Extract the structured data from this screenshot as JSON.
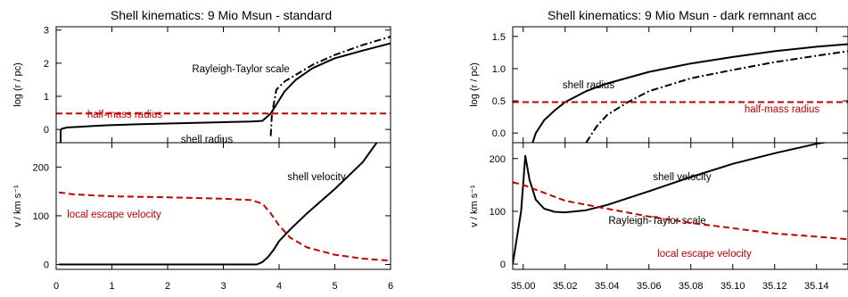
{
  "chart_data": [
    {
      "type": "line",
      "title": "Shell kinematics: 9 Mio Msun - standard",
      "xlim": [
        0,
        6
      ],
      "x_ticks": [
        "0",
        "1",
        "2",
        "3",
        "4",
        "5",
        "6"
      ],
      "panels": [
        {
          "ylabel": "log (r / pc)",
          "ylim": [
            -0.4,
            3.1
          ],
          "y_ticks": [
            "0",
            "1",
            "2",
            "3"
          ],
          "series": [
            {
              "name": "shell radius",
              "color": "#000000",
              "style": "solid",
              "x": [
                0.08,
                0.08,
                0.1,
                0.2,
                0.4,
                0.7,
                1.0,
                1.5,
                2.0,
                2.5,
                3.0,
                3.5,
                3.7,
                3.85,
                3.95,
                4.1,
                4.3,
                4.6,
                5.0,
                5.5,
                6.0
              ],
              "y": [
                -0.4,
                -0.02,
                0.02,
                0.06,
                0.08,
                0.11,
                0.13,
                0.16,
                0.18,
                0.2,
                0.22,
                0.24,
                0.26,
                0.48,
                0.75,
                1.15,
                1.5,
                1.85,
                2.15,
                2.38,
                2.6
              ]
            },
            {
              "name": "Rayleigh-Taylor scale",
              "color": "#000000",
              "style": "dashdot",
              "x": [
                3.85,
                3.87,
                3.95,
                4.1,
                4.3,
                4.6,
                5.0,
                5.5,
                6.0
              ],
              "y": [
                -0.2,
                0.45,
                1.2,
                1.45,
                1.65,
                1.95,
                2.25,
                2.55,
                2.8
              ]
            },
            {
              "name": "half-mass radius",
              "color": "#c00000",
              "style": "dashed",
              "x": [
                0,
                6
              ],
              "y": [
                0.48,
                0.48
              ]
            }
          ]
        },
        {
          "ylabel": "v / km s⁻¹",
          "ylim": [
            -10,
            250
          ],
          "y_ticks": [
            "0",
            "100",
            "200"
          ],
          "series": [
            {
              "name": "shell velocity",
              "color": "#000000",
              "style": "solid",
              "x": [
                0.05,
                0.5,
                1.0,
                2.0,
                3.0,
                3.6,
                3.7,
                3.8,
                3.9,
                4.0,
                4.2,
                4.5,
                5.0,
                5.5,
                5.75
              ],
              "y": [
                0,
                0,
                0,
                0,
                0,
                0,
                5,
                15,
                30,
                48,
                72,
                105,
                155,
                210,
                250
              ]
            },
            {
              "name": "local escape velocity",
              "color": "#c00000",
              "style": "dashed",
              "x": [
                0.05,
                0.3,
                1.0,
                2.0,
                3.0,
                3.5,
                3.7,
                3.85,
                4.0,
                4.2,
                4.5,
                5.0,
                5.5,
                6.0
              ],
              "y": [
                148,
                144,
                140,
                138,
                135,
                132,
                125,
                105,
                80,
                55,
                35,
                20,
                12,
                8
              ]
            }
          ]
        }
      ]
    },
    {
      "type": "line",
      "title": "Shell kinematics: 9 Mio Msun - dark remnant acc",
      "xlim": [
        34.995,
        35.155
      ],
      "x_ticks": [
        "35.00",
        "35.02",
        "35.04",
        "35.06",
        "35.08",
        "35.10",
        "35.12",
        "35.14"
      ],
      "panels": [
        {
          "ylabel": "log (r / pc)",
          "ylim": [
            -0.15,
            1.65
          ],
          "y_ticks": [
            "0.0",
            "0.5",
            "1.0",
            "1.5"
          ],
          "series": [
            {
              "name": "shell radius",
              "color": "#000000",
              "style": "solid",
              "x": [
                35.0045,
                35.006,
                35.01,
                35.015,
                35.02,
                35.03,
                35.04,
                35.06,
                35.08,
                35.1,
                35.12,
                35.14,
                35.155
              ],
              "y": [
                -0.15,
                0.0,
                0.2,
                0.35,
                0.48,
                0.65,
                0.77,
                0.95,
                1.08,
                1.18,
                1.27,
                1.34,
                1.38
              ]
            },
            {
              "name": "Rayleigh-Taylor scale",
              "color": "#000000",
              "style": "dashdot",
              "x": [
                35.03,
                35.035,
                35.04,
                35.05,
                35.06,
                35.08,
                35.1,
                35.12,
                35.14,
                35.155
              ],
              "y": [
                -0.15,
                0.1,
                0.28,
                0.48,
                0.65,
                0.85,
                0.98,
                1.1,
                1.2,
                1.27
              ]
            },
            {
              "name": "half-mass radius",
              "color": "#c00000",
              "style": "dashed",
              "x": [
                34.995,
                35.155
              ],
              "y": [
                0.48,
                0.48
              ]
            }
          ]
        },
        {
          "ylabel": "v / km s⁻¹",
          "ylim": [
            -10,
            230
          ],
          "y_ticks": [
            "0",
            "100",
            "200"
          ],
          "series": [
            {
              "name": "shell velocity",
              "color": "#000000",
              "style": "solid",
              "x": [
                34.995,
                34.999,
                35.001,
                35.003,
                35.006,
                35.01,
                35.015,
                35.02,
                35.03,
                35.04,
                35.06,
                35.08,
                35.1,
                35.12,
                35.14,
                35.155
              ],
              "y": [
                0,
                100,
                205,
                160,
                122,
                105,
                99,
                98,
                102,
                112,
                138,
                165,
                190,
                210,
                228,
                238
              ]
            },
            {
              "name": "local escape velocity",
              "color": "#c00000",
              "style": "dashed",
              "x": [
                34.995,
                35.0,
                35.01,
                35.02,
                35.04,
                35.06,
                35.08,
                35.1,
                35.12,
                35.14,
                35.155
              ],
              "y": [
                155,
                150,
                135,
                120,
                105,
                90,
                78,
                68,
                58,
                52,
                47
              ]
            }
          ]
        }
      ]
    }
  ]
}
